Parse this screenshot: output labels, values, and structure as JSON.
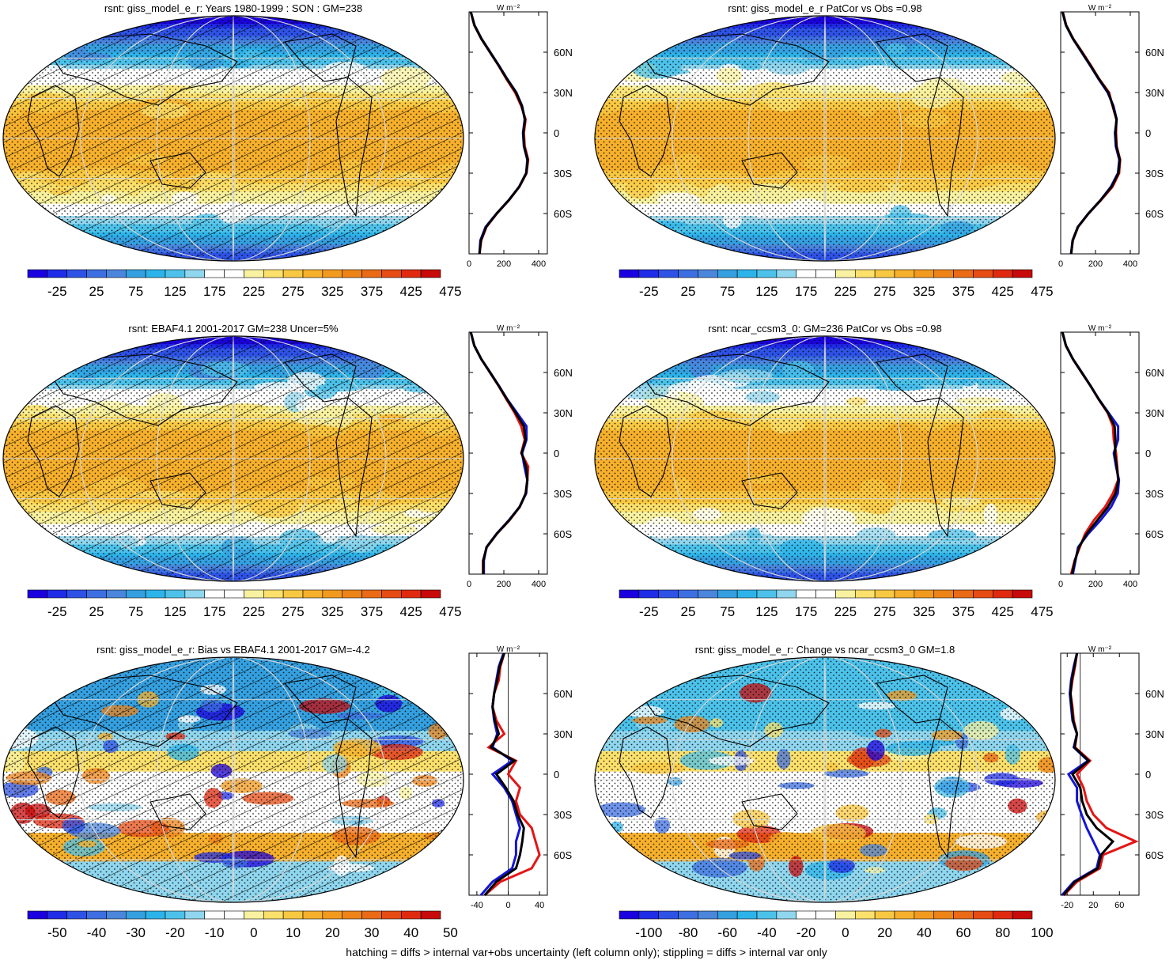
{
  "colors": {
    "level_palette": [
      "#1b00e0",
      "#1f2ce8",
      "#2e52e6",
      "#3d6fe2",
      "#4a86dc",
      "#35a0e0",
      "#2cb4ea",
      "#4cc2ea",
      "#8fd6ee",
      "#ffffff",
      "#ffffff",
      "#f8f2a0",
      "#fbe06c",
      "#f9c842",
      "#f6b02c",
      "#f29a1e",
      "#ee8318",
      "#ea6a16",
      "#e64c14",
      "#e02a10",
      "#c80a0a"
    ],
    "obs_line": "#1515d6",
    "model_line": "#e51414",
    "black_line": "#000000"
  },
  "panels": [
    {
      "id": "p1",
      "title": "rsnt: giss_model_e_r: Years 1980-1999 : SON : GM=238",
      "field": "abs",
      "hatch": true,
      "colorbar_labels": [
        "-25",
        "25",
        "75",
        "125",
        "175",
        "225",
        "275",
        "325",
        "375",
        "425",
        "475"
      ],
      "profile": {
        "unit": "W m⁻²",
        "lat_ticks": [
          "60N",
          "30N",
          "0",
          "30S",
          "60S"
        ],
        "x_ticks": [
          "0",
          "200",
          "400"
        ],
        "x_range": [
          0,
          450
        ],
        "lat": [
          90,
          80,
          70,
          60,
          50,
          40,
          30,
          20,
          10,
          0,
          -10,
          -20,
          -30,
          -40,
          -50,
          -60,
          -70,
          -80,
          -90
        ],
        "series": [
          {
            "color": "model",
            "values": [
              10,
              30,
              70,
              120,
              170,
              215,
              265,
              300,
              325,
              315,
              320,
              340,
              330,
              290,
              230,
              160,
              100,
              70,
              60
            ]
          },
          {
            "color": "obs",
            "values": [
              10,
              32,
              72,
              122,
              172,
              220,
              272,
              305,
              320,
              310,
              315,
              335,
              328,
              288,
              228,
              158,
              95,
              65,
              60
            ]
          },
          {
            "color": "black",
            "values": [
              10,
              31,
              71,
              121,
              171,
              218,
              270,
              303,
              322,
              312,
              317,
              337,
              329,
              289,
              229,
              159,
              98,
              68,
              60
            ]
          }
        ]
      }
    },
    {
      "id": "p2",
      "title": "rsnt: giss_model_e_r PatCor vs Obs =0.98",
      "field": "abs",
      "hatch": false,
      "colorbar_labels": [
        "-25",
        "25",
        "75",
        "125",
        "175",
        "225",
        "275",
        "325",
        "375",
        "425",
        "475"
      ],
      "profile": {
        "unit": "W m⁻²",
        "lat_ticks": [
          "60N",
          "30N",
          "0",
          "30S",
          "60S"
        ],
        "x_ticks": [
          "0",
          "200",
          "400"
        ],
        "x_range": [
          0,
          450
        ],
        "lat": [
          90,
          80,
          70,
          60,
          50,
          40,
          30,
          20,
          10,
          0,
          -10,
          -20,
          -30,
          -40,
          -50,
          -60,
          -70,
          -80,
          -90
        ],
        "series": [
          {
            "color": "model",
            "values": [
              12,
              32,
              72,
              124,
              174,
              222,
              278,
              298,
              320,
              318,
              322,
              342,
              336,
              298,
              232,
              160,
              100,
              70,
              60
            ]
          },
          {
            "color": "obs",
            "values": [
              10,
              30,
              70,
              120,
              170,
              218,
              270,
              303,
              322,
              312,
              317,
              337,
              329,
              289,
              229,
              159,
              98,
              68,
              60
            ]
          },
          {
            "color": "black",
            "values": [
              11,
              31,
              71,
              122,
              172,
              220,
              274,
              300,
              321,
              315,
              320,
              340,
              332,
              293,
              230,
              160,
              99,
              69,
              60
            ]
          }
        ]
      }
    },
    {
      "id": "p3",
      "title": "rsnt: EBAF4.1 2001-2017 GM=238 Uncer=5%",
      "field": "abs",
      "hatch": true,
      "colorbar_labels": [
        "-25",
        "25",
        "75",
        "125",
        "175",
        "225",
        "275",
        "325",
        "375",
        "425",
        "475"
      ],
      "profile": {
        "unit": "W m⁻²",
        "lat_ticks": [
          "60N",
          "30N",
          "0",
          "30S",
          "60S"
        ],
        "x_ticks": [
          "0",
          "200",
          "400"
        ],
        "x_range": [
          0,
          450
        ],
        "lat": [
          90,
          80,
          70,
          60,
          50,
          40,
          30,
          20,
          10,
          0,
          -10,
          -20,
          -30,
          -40,
          -50,
          -60,
          -70,
          -80,
          -90
        ],
        "series": [
          {
            "color": "model",
            "values": [
              10,
              30,
              70,
              120,
              170,
              215,
              262,
              300,
              320,
              300,
              340,
              335,
              325,
              292,
              232,
              160,
              102,
              80,
              80
            ]
          },
          {
            "color": "obs",
            "values": [
              10,
              30,
              70,
              122,
              172,
              220,
              275,
              330,
              330,
              305,
              318,
              335,
              328,
              290,
              228,
              158,
              100,
              85,
              85
            ]
          },
          {
            "color": "black",
            "values": [
              10,
              30,
              70,
              121,
              171,
              218,
              268,
              315,
              325,
              302,
              328,
              335,
              326,
              291,
              230,
              159,
              101,
              82,
              82
            ]
          }
        ]
      }
    },
    {
      "id": "p4",
      "title": "rsnt: ncar_ccsm3_0: GM=236 PatCor vs Obs =0.98",
      "field": "abs",
      "hatch": false,
      "colorbar_labels": [
        "-25",
        "25",
        "75",
        "125",
        "175",
        "225",
        "275",
        "325",
        "375",
        "425",
        "475"
      ],
      "profile": {
        "unit": "W m⁻²",
        "lat_ticks": [
          "60N",
          "30N",
          "0",
          "30S",
          "60S"
        ],
        "x_ticks": [
          "0",
          "200",
          "400"
        ],
        "x_range": [
          0,
          450
        ],
        "lat": [
          90,
          80,
          70,
          60,
          50,
          40,
          30,
          20,
          10,
          0,
          -10,
          -20,
          -30,
          -40,
          -50,
          -60,
          -70,
          -80,
          -90
        ],
        "series": [
          {
            "color": "model",
            "values": [
              10,
              30,
              70,
              120,
              172,
              218,
              270,
              300,
              305,
              318,
              325,
              330,
              300,
              255,
              190,
              140,
              110,
              80,
              60
            ]
          },
          {
            "color": "obs",
            "values": [
              10,
              30,
              70,
              122,
              172,
              220,
              275,
              330,
              330,
              305,
              318,
              335,
              328,
              290,
              228,
              158,
              100,
              85,
              70
            ]
          },
          {
            "color": "black",
            "values": [
              10,
              30,
              70,
              121,
              172,
              219,
              272,
              310,
              315,
              312,
              322,
              332,
              315,
              272,
              210,
              150,
              105,
              82,
              65
            ]
          }
        ]
      }
    },
    {
      "id": "p5",
      "title": "rsnt: giss_model_e_r: Bias vs EBAF4.1 2001-2017  GM=-4.2",
      "field": "diff",
      "hatch": true,
      "colorbar_labels": [
        "-50",
        "-40",
        "-30",
        "-20",
        "-10",
        "0",
        "10",
        "20",
        "30",
        "40",
        "50"
      ],
      "profile": {
        "unit": "W m⁻²",
        "lat_ticks": [
          "60N",
          "30N",
          "0",
          "30S",
          "60S"
        ],
        "x_ticks": [
          "-40",
          "0",
          "40"
        ],
        "x_range": [
          -50,
          50
        ],
        "lat": [
          90,
          80,
          70,
          60,
          50,
          40,
          30,
          20,
          10,
          0,
          -10,
          -20,
          -30,
          -40,
          -50,
          -60,
          -70,
          -80,
          -90
        ],
        "series": [
          {
            "color": "model",
            "values": [
              -5,
              -10,
              -12,
              -18,
              -20,
              -15,
              -5,
              -25,
              10,
              0,
              15,
              10,
              15,
              30,
              35,
              40,
              30,
              -10,
              -30
            ]
          },
          {
            "color": "obs",
            "values": [
              -6,
              -12,
              -15,
              -18,
              -20,
              -18,
              -14,
              -20,
              5,
              -20,
              -5,
              5,
              10,
              15,
              10,
              10,
              5,
              -20,
              -35
            ]
          },
          {
            "color": "black",
            "values": [
              -5,
              -11,
              -14,
              -18,
              -20,
              -17,
              -12,
              -22,
              8,
              -15,
              -3,
              7,
              12,
              20,
              18,
              15,
              10,
              -15,
              -30
            ]
          }
        ]
      }
    },
    {
      "id": "p6",
      "title": "rsnt: giss_model_e_r: Change vs ncar_ccsm3_0 GM=1.8",
      "field": "diff",
      "hatch": false,
      "colorbar_labels": [
        "-100",
        "-80",
        "-60",
        "-40",
        "-20",
        "0",
        "20",
        "40",
        "60",
        "80",
        "100"
      ],
      "profile": {
        "unit": "W m⁻²",
        "lat_ticks": [
          "60N",
          "30N",
          "0",
          "30S",
          "60S"
        ],
        "x_ticks": [
          "-20",
          "20",
          "60"
        ],
        "x_range": [
          -30,
          90
        ],
        "lat": [
          90,
          80,
          70,
          60,
          50,
          40,
          30,
          20,
          10,
          0,
          -10,
          -20,
          -30,
          -40,
          -50,
          -60,
          -70,
          -80,
          -90
        ],
        "series": [
          {
            "color": "model",
            "values": [
              -5,
              -8,
              -12,
              -15,
              -12,
              -10,
              -5,
              -8,
              15,
              -5,
              5,
              10,
              20,
              40,
              85,
              35,
              30,
              -5,
              -25
            ]
          },
          {
            "color": "obs",
            "values": [
              -5,
              -10,
              -14,
              -16,
              -14,
              -12,
              -5,
              -10,
              12,
              -18,
              -5,
              -5,
              2,
              10,
              20,
              30,
              25,
              -10,
              -28
            ]
          },
          {
            "color": "black",
            "values": [
              -5,
              -9,
              -13,
              -15,
              -13,
              -11,
              -5,
              -9,
              13,
              -12,
              0,
              3,
              10,
              25,
              50,
              32,
              27,
              -8,
              -26
            ]
          }
        ]
      }
    }
  ],
  "footer": "hatching = diffs > internal var+obs uncertainty (left column only); stippling = diffs > internal var only"
}
